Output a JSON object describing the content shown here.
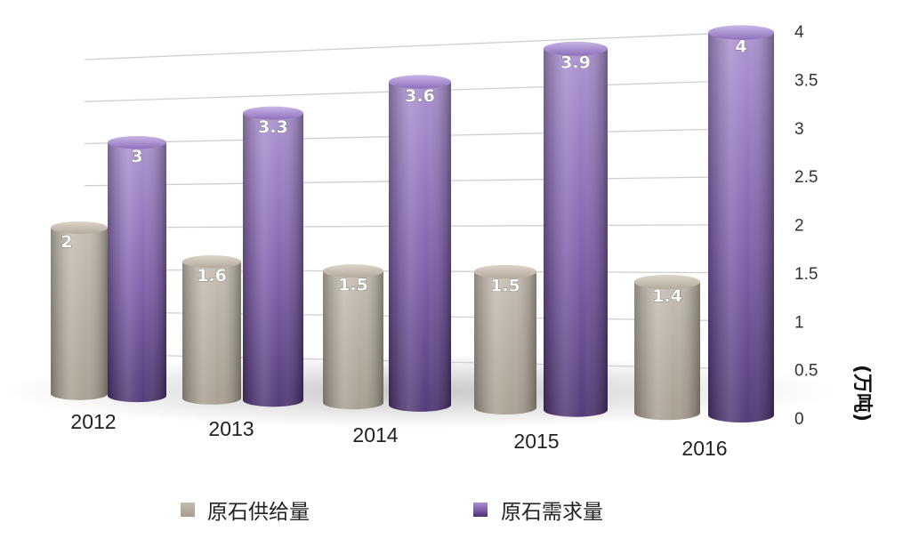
{
  "chart_data": {
    "type": "bar",
    "categories": [
      "2012",
      "2013",
      "2014",
      "2015",
      "2016"
    ],
    "series": [
      {
        "name": "原石供给量",
        "values": [
          2,
          1.6,
          1.5,
          1.5,
          1.4
        ],
        "color": "#b3aa9c"
      },
      {
        "name": "原石需求量",
        "values": [
          3,
          3.3,
          3.6,
          3.9,
          4
        ],
        "color": "#7b5ba8"
      }
    ],
    "data_labels": {
      "supply": [
        "2",
        "1.6",
        "1.5",
        "1.5",
        "1.4"
      ],
      "demand": [
        "3",
        "3.3",
        "3.6",
        "3.9",
        "4"
      ]
    },
    "y_ticks": [
      "0",
      "0.5",
      "1",
      "1.5",
      "2",
      "2.5",
      "3",
      "3.5",
      "4"
    ],
    "ylabel": "(万吨)",
    "ylim": [
      0,
      4
    ],
    "grid": true,
    "legend_position": "bottom"
  }
}
